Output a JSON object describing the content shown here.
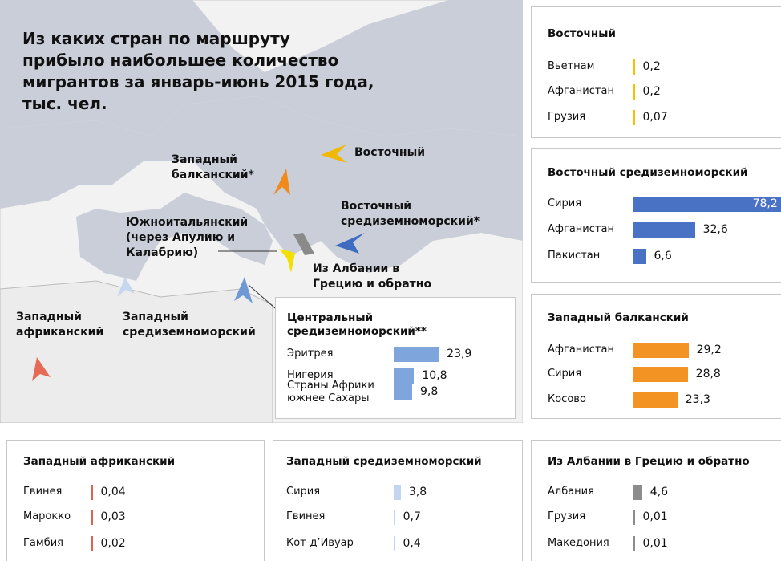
{
  "title": "Из каких стран по маршруту прибыло наибольшее количество мигрантов за январь-июнь 2015 года, тыс. чел.",
  "map": {
    "labels": [
      "Западный балканский*",
      "Восточный",
      "Восточный средиземноморский*",
      "Южноитальянский (через Апулию и Калабрию)",
      "Из Албании в Грецию и обратно",
      "Западный африканский",
      "Западный средиземноморский"
    ]
  },
  "chart_data": [
    {
      "type": "bar",
      "title": "Восточный",
      "categories": [
        "Вьетнам",
        "Афганистан",
        "Грузия"
      ],
      "values": [
        0.2,
        0.2,
        0.07
      ],
      "value_labels": [
        "0,2",
        "0,2",
        "0,07"
      ],
      "color": "#f2c200"
    },
    {
      "type": "bar",
      "title": "Восточный средиземноморский",
      "categories": [
        "Сирия",
        "Афганистан",
        "Пакистан"
      ],
      "values": [
        78.2,
        32.6,
        6.6
      ],
      "value_labels": [
        "78,2",
        "32,6",
        "6,6"
      ],
      "color": "#4a72c4"
    },
    {
      "type": "bar",
      "title": "Западный балканский",
      "categories": [
        "Афганистан",
        "Сирия",
        "Косово"
      ],
      "values": [
        29.2,
        28.8,
        23.3
      ],
      "value_labels": [
        "29,2",
        "28,8",
        "23,3"
      ],
      "color": "#f39324"
    },
    {
      "type": "bar",
      "title": "Центральный средиземноморский**",
      "categories": [
        "Эритрея",
        "Нигерия",
        "Страны Африки южнее Сахары"
      ],
      "values": [
        23.9,
        10.8,
        9.8
      ],
      "value_labels": [
        "23,9",
        "10,8",
        "9,8"
      ],
      "color": "#7fa6dc"
    },
    {
      "type": "bar",
      "title": "Западный африканский",
      "categories": [
        "Гвинея",
        "Марокко",
        "Гамбия"
      ],
      "values": [
        0.04,
        0.03,
        0.02
      ],
      "value_labels": [
        "0,04",
        "0,03",
        "0,02"
      ],
      "color": "#e0624f"
    },
    {
      "type": "bar",
      "title": "Западный средиземноморский",
      "categories": [
        "Сирия",
        "Гвинея",
        "Кот-д’Ивуар"
      ],
      "values": [
        3.8,
        0.7,
        0.4
      ],
      "value_labels": [
        "3,8",
        "0,7",
        "0,4"
      ],
      "color": "#c3d5ef"
    },
    {
      "type": "bar",
      "title": "Из Албании в Грецию и обратно",
      "categories": [
        "Албания",
        "Грузия",
        "Македония"
      ],
      "values": [
        4.6,
        0.01,
        0.01
      ],
      "value_labels": [
        "4,6",
        "0,01",
        "0,01"
      ],
      "color": "#8c8c8c"
    }
  ]
}
